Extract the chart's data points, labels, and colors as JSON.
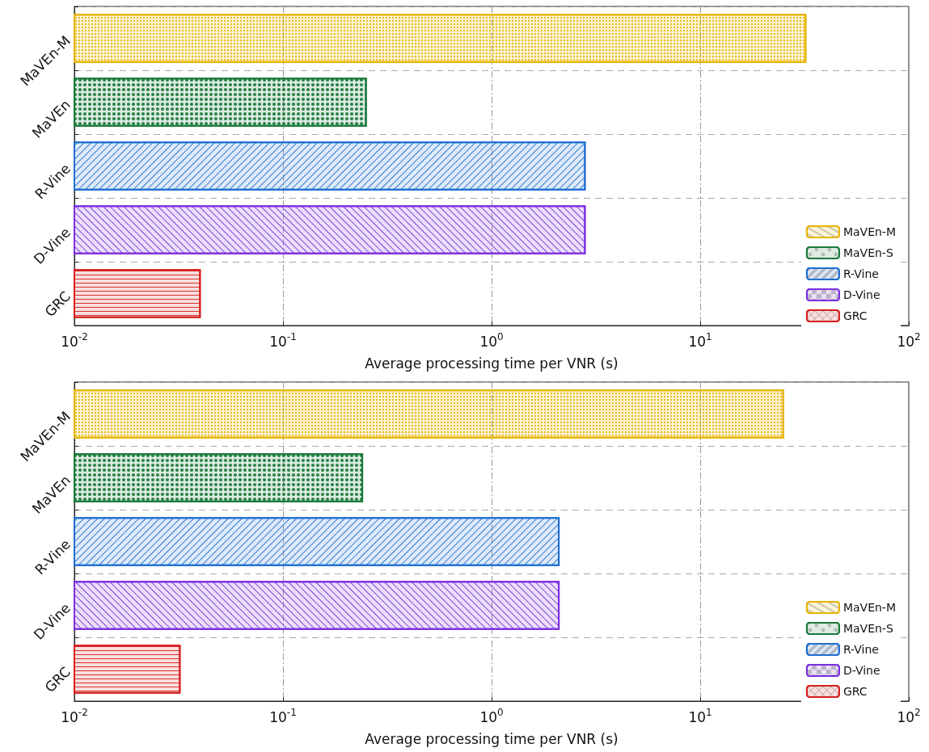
{
  "chart_data": [
    {
      "type": "bar",
      "orientation": "horizontal",
      "categories": [
        "MaVEn-M",
        "MaVEn",
        "R-Vine",
        "D-Vine",
        "GRC"
      ],
      "xlabel": "Average processing time per VNR (s)",
      "log": "x",
      "xlim": [
        0.01,
        100
      ],
      "xticks": [
        {
          "value": 0.01,
          "label": "10$^{-2}$"
        },
        {
          "value": 0.1,
          "label": "10$^{-1}$"
        },
        {
          "value": 1,
          "label": "10$^{0}$"
        },
        {
          "value": 10,
          "label": "10$^{1}$"
        },
        {
          "value": 100,
          "label": "10$^{2}$"
        }
      ],
      "grid": true,
      "legend": "bottom right",
      "series": [
        {
          "name": "MaVEn-M",
          "color": "#e6b400",
          "values": [
            32,
            null,
            null,
            null,
            null
          ]
        },
        {
          "name": "MaVEn-S",
          "color": "#1a7a3a",
          "values": [
            null,
            0.25,
            null,
            null,
            null
          ]
        },
        {
          "name": "R-Vine",
          "color": "#1f6fd1",
          "values": [
            null,
            null,
            2.8,
            null,
            null
          ]
        },
        {
          "name": "D-Vine",
          "color": "#7a2ee0",
          "values": [
            null,
            null,
            null,
            2.8,
            null
          ]
        },
        {
          "name": "GRC",
          "color": "#d62020",
          "values": [
            null,
            null,
            null,
            null,
            0.04
          ]
        }
      ]
    },
    {
      "type": "bar",
      "orientation": "horizontal",
      "categories": [
        "MaVEn-M",
        "MaVEn",
        "R-Vine",
        "D-Vine",
        "GRC"
      ],
      "xlabel": "Average processing time per VNR (s)",
      "log": "x",
      "xlim": [
        0.01,
        100
      ],
      "xticks": [
        {
          "value": 0.01,
          "label": "10$^{-2}$"
        },
        {
          "value": 0.1,
          "label": "10$^{-1}$"
        },
        {
          "value": 1,
          "label": "10$^{0}$"
        },
        {
          "value": 10,
          "label": "10$^{1}$"
        },
        {
          "value": 100,
          "label": "10$^{2}$"
        }
      ],
      "grid": true,
      "legend": "bottom right",
      "series": [
        {
          "name": "MaVEn-M",
          "color": "#e6b400",
          "values": [
            25,
            null,
            null,
            null,
            null
          ]
        },
        {
          "name": "MaVEn-S",
          "color": "#1a7a3a",
          "values": [
            null,
            0.24,
            null,
            null,
            null
          ]
        },
        {
          "name": "R-Vine",
          "color": "#1f6fd1",
          "values": [
            null,
            null,
            2.1,
            null,
            null
          ]
        },
        {
          "name": "D-Vine",
          "color": "#7a2ee0",
          "values": [
            null,
            null,
            null,
            2.1,
            null
          ]
        },
        {
          "name": "GRC",
          "color": "#d62020",
          "values": [
            null,
            null,
            null,
            null,
            0.032
          ]
        }
      ]
    }
  ]
}
